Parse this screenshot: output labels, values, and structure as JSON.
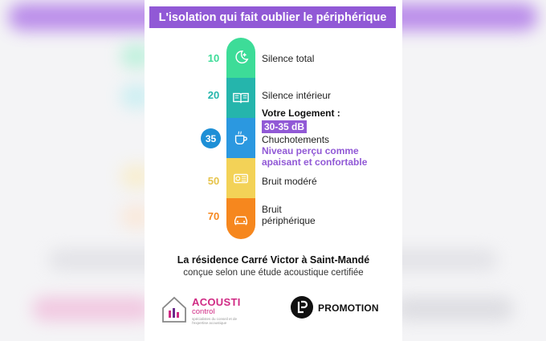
{
  "title": "L'isolation qui fait oublier le périphérique",
  "levels": [
    {
      "value": "10",
      "label": "Silence total",
      "color": "#3ddc98",
      "icon": "moon-icon"
    },
    {
      "value": "20",
      "label": "Silence intérieur",
      "color": "#25b5ac",
      "icon": "book-icon"
    },
    {
      "value": "35",
      "label": "Chuchotements",
      "color": "#2b98e0",
      "icon": "tea-cup-icon"
    },
    {
      "value": "50",
      "label": "Bruit modéré",
      "color": "#f3d257",
      "icon": "radio-icon"
    },
    {
      "value": "70",
      "label_line1": "Bruit",
      "label_line2": "périphérique",
      "color": "#f6871e",
      "icon": "car-icon"
    }
  ],
  "logement": {
    "heading": "Votre Logement :",
    "range": "30-35 dB",
    "note_line1": "Niveau perçu comme",
    "note_line2": "apaisant et confortable"
  },
  "residence": "La résidence Carré Victor à Saint-Mandé",
  "etude": "conçue selon une étude acoustique certifiée",
  "acousti_logo": {
    "name": "ACOUSTI",
    "sub": "control",
    "tagline": "spécialistes du conseil et de l'expertise acoustique"
  },
  "promotion_logo": {
    "monogram": "LP",
    "word": "PROMOTION"
  }
}
